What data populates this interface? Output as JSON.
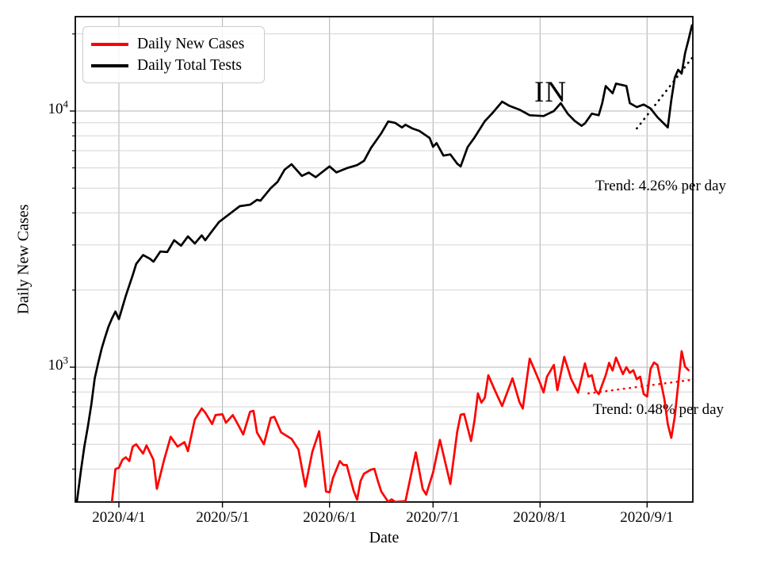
{
  "figure": {
    "annotations": {
      "region_label": "IN"
    }
  },
  "chart_data": {
    "type": "line",
    "title": "",
    "xlabel": "Date",
    "ylabel": "Daily New Cases",
    "y_scale": "log",
    "ylim": [
      298,
      23400
    ],
    "xlim": [
      "2020-03-19",
      "2020-09-14"
    ],
    "grid": true,
    "legend_position": "upper left",
    "x_ticks": [
      {
        "value": "2020-04-01",
        "label": "2020/4/1"
      },
      {
        "value": "2020-05-01",
        "label": "2020/5/1"
      },
      {
        "value": "2020-06-01",
        "label": "2020/6/1"
      },
      {
        "value": "2020-07-01",
        "label": "2020/7/1"
      },
      {
        "value": "2020-08-01",
        "label": "2020/8/1"
      },
      {
        "value": "2020-09-01",
        "label": "2020/9/1"
      }
    ],
    "y_major_ticks": [
      {
        "value": 1000,
        "base": "10",
        "exp": "3"
      },
      {
        "value": 10000,
        "base": "10",
        "exp": "4"
      }
    ],
    "y_minor_gridlines": [
      400,
      500,
      600,
      700,
      800,
      900,
      2000,
      3000,
      4000,
      5000,
      6000,
      7000,
      8000,
      9000,
      20000
    ],
    "series": [
      {
        "name": "Daily New Cases",
        "color": "#ff0000",
        "points": [
          [
            "2020-03-29",
            260
          ],
          [
            "2020-03-30",
            300
          ],
          [
            "2020-03-31",
            400
          ],
          [
            "2020-04-01",
            405
          ],
          [
            "2020-04-02",
            435
          ],
          [
            "2020-04-03",
            445
          ],
          [
            "2020-04-04",
            430
          ],
          [
            "2020-04-05",
            490
          ],
          [
            "2020-04-06",
            500
          ],
          [
            "2020-04-08",
            460
          ],
          [
            "2020-04-09",
            495
          ],
          [
            "2020-04-11",
            435
          ],
          [
            "2020-04-12",
            335
          ],
          [
            "2020-04-14",
            430
          ],
          [
            "2020-04-16",
            535
          ],
          [
            "2020-04-18",
            490
          ],
          [
            "2020-04-20",
            510
          ],
          [
            "2020-04-21",
            470
          ],
          [
            "2020-04-23",
            625
          ],
          [
            "2020-04-25",
            690
          ],
          [
            "2020-04-26",
            665
          ],
          [
            "2020-04-28",
            600
          ],
          [
            "2020-04-29",
            650
          ],
          [
            "2020-05-01",
            655
          ],
          [
            "2020-05-02",
            607
          ],
          [
            "2020-05-04",
            650
          ],
          [
            "2020-05-06",
            580
          ],
          [
            "2020-05-07",
            546
          ],
          [
            "2020-05-09",
            670
          ],
          [
            "2020-05-10",
            675
          ],
          [
            "2020-05-11",
            556
          ],
          [
            "2020-05-13",
            500
          ],
          [
            "2020-05-15",
            634
          ],
          [
            "2020-05-16",
            640
          ],
          [
            "2020-05-18",
            556
          ],
          [
            "2020-05-21",
            525
          ],
          [
            "2020-05-23",
            477
          ],
          [
            "2020-05-25",
            342
          ],
          [
            "2020-05-27",
            466
          ],
          [
            "2020-05-29",
            562
          ],
          [
            "2020-05-31",
            327
          ],
          [
            "2020-06-01",
            325
          ],
          [
            "2020-06-02",
            369
          ],
          [
            "2020-06-04",
            430
          ],
          [
            "2020-06-05",
            415
          ],
          [
            "2020-06-06",
            415
          ],
          [
            "2020-06-08",
            329
          ],
          [
            "2020-06-09",
            304
          ],
          [
            "2020-06-10",
            360
          ],
          [
            "2020-06-11",
            384
          ],
          [
            "2020-06-13",
            398
          ],
          [
            "2020-06-14",
            401
          ],
          [
            "2020-06-15",
            360
          ],
          [
            "2020-06-16",
            327
          ],
          [
            "2020-06-18",
            298
          ],
          [
            "2020-06-19",
            305
          ],
          [
            "2020-06-20",
            298
          ],
          [
            "2020-06-23",
            300
          ],
          [
            "2020-06-26",
            465
          ],
          [
            "2020-06-28",
            335
          ],
          [
            "2020-06-29",
            318
          ],
          [
            "2020-07-01",
            388
          ],
          [
            "2020-07-03",
            520
          ],
          [
            "2020-07-05",
            400
          ],
          [
            "2020-07-06",
            350
          ],
          [
            "2020-07-08",
            560
          ],
          [
            "2020-07-09",
            652
          ],
          [
            "2020-07-10",
            656
          ],
          [
            "2020-07-12",
            515
          ],
          [
            "2020-07-13",
            620
          ],
          [
            "2020-07-14",
            790
          ],
          [
            "2020-07-15",
            727
          ],
          [
            "2020-07-16",
            760
          ],
          [
            "2020-07-17",
            930
          ],
          [
            "2020-07-19",
            807
          ],
          [
            "2020-07-21",
            705
          ],
          [
            "2020-07-24",
            905
          ],
          [
            "2020-07-26",
            732
          ],
          [
            "2020-07-27",
            690
          ],
          [
            "2020-07-29",
            1080
          ],
          [
            "2020-08-01",
            867
          ],
          [
            "2020-08-02",
            797
          ],
          [
            "2020-08-03",
            918
          ],
          [
            "2020-08-05",
            1020
          ],
          [
            "2020-08-06",
            813
          ],
          [
            "2020-08-08",
            1097
          ],
          [
            "2020-08-10",
            900
          ],
          [
            "2020-08-12",
            795
          ],
          [
            "2020-08-14",
            1035
          ],
          [
            "2020-08-15",
            918
          ],
          [
            "2020-08-16",
            930
          ],
          [
            "2020-08-17",
            815
          ],
          [
            "2020-08-18",
            785
          ],
          [
            "2020-08-20",
            930
          ],
          [
            "2020-08-21",
            1040
          ],
          [
            "2020-08-22",
            970
          ],
          [
            "2020-08-23",
            1090
          ],
          [
            "2020-08-25",
            940
          ],
          [
            "2020-08-26",
            1000
          ],
          [
            "2020-08-27",
            950
          ],
          [
            "2020-08-28",
            973
          ],
          [
            "2020-08-29",
            897
          ],
          [
            "2020-08-30",
            918
          ],
          [
            "2020-08-31",
            786
          ],
          [
            "2020-09-01",
            768
          ],
          [
            "2020-09-02",
            985
          ],
          [
            "2020-09-03",
            1043
          ],
          [
            "2020-09-04",
            1020
          ],
          [
            "2020-09-06",
            750
          ],
          [
            "2020-09-07",
            600
          ],
          [
            "2020-09-08",
            530
          ],
          [
            "2020-09-09",
            640
          ],
          [
            "2020-09-10",
            855
          ],
          [
            "2020-09-11",
            1155
          ],
          [
            "2020-09-12",
            1005
          ],
          [
            "2020-09-13",
            973
          ]
        ]
      },
      {
        "name": "Daily Total Tests",
        "color": "#000000",
        "points": [
          [
            "2020-03-19",
            250
          ],
          [
            "2020-03-20",
            310
          ],
          [
            "2020-03-21",
            395
          ],
          [
            "2020-03-22",
            490
          ],
          [
            "2020-03-23",
            585
          ],
          [
            "2020-03-24",
            715
          ],
          [
            "2020-03-25",
            905
          ],
          [
            "2020-03-26",
            1040
          ],
          [
            "2020-03-27",
            1180
          ],
          [
            "2020-03-28",
            1310
          ],
          [
            "2020-03-29",
            1440
          ],
          [
            "2020-03-30",
            1550
          ],
          [
            "2020-03-31",
            1650
          ],
          [
            "2020-04-01",
            1540
          ],
          [
            "2020-04-03",
            1900
          ],
          [
            "2020-04-05",
            2285
          ],
          [
            "2020-04-06",
            2530
          ],
          [
            "2020-04-08",
            2740
          ],
          [
            "2020-04-10",
            2650
          ],
          [
            "2020-04-11",
            2580
          ],
          [
            "2020-04-13",
            2830
          ],
          [
            "2020-04-15",
            2815
          ],
          [
            "2020-04-17",
            3130
          ],
          [
            "2020-04-19",
            2980
          ],
          [
            "2020-04-21",
            3240
          ],
          [
            "2020-04-23",
            3040
          ],
          [
            "2020-04-25",
            3270
          ],
          [
            "2020-04-26",
            3130
          ],
          [
            "2020-04-28",
            3400
          ],
          [
            "2020-04-30",
            3690
          ],
          [
            "2020-05-03",
            3960
          ],
          [
            "2020-05-06",
            4250
          ],
          [
            "2020-05-09",
            4310
          ],
          [
            "2020-05-11",
            4500
          ],
          [
            "2020-05-12",
            4470
          ],
          [
            "2020-05-15",
            5000
          ],
          [
            "2020-05-17",
            5300
          ],
          [
            "2020-05-19",
            5900
          ],
          [
            "2020-05-21",
            6200
          ],
          [
            "2020-05-24",
            5580
          ],
          [
            "2020-05-26",
            5750
          ],
          [
            "2020-05-28",
            5520
          ],
          [
            "2020-06-01",
            6080
          ],
          [
            "2020-06-03",
            5760
          ],
          [
            "2020-06-06",
            5980
          ],
          [
            "2020-06-09",
            6150
          ],
          [
            "2020-06-11",
            6390
          ],
          [
            "2020-06-13",
            7170
          ],
          [
            "2020-06-16",
            8190
          ],
          [
            "2020-06-18",
            9100
          ],
          [
            "2020-06-20",
            8990
          ],
          [
            "2020-06-22",
            8630
          ],
          [
            "2020-06-23",
            8840
          ],
          [
            "2020-06-25",
            8550
          ],
          [
            "2020-06-27",
            8370
          ],
          [
            "2020-06-30",
            7850
          ],
          [
            "2020-07-01",
            7250
          ],
          [
            "2020-07-02",
            7500
          ],
          [
            "2020-07-04",
            6700
          ],
          [
            "2020-07-06",
            6770
          ],
          [
            "2020-07-08",
            6230
          ],
          [
            "2020-07-09",
            6080
          ],
          [
            "2020-07-11",
            7230
          ],
          [
            "2020-07-13",
            7880
          ],
          [
            "2020-07-16",
            9130
          ],
          [
            "2020-07-18",
            9750
          ],
          [
            "2020-07-21",
            10880
          ],
          [
            "2020-07-23",
            10500
          ],
          [
            "2020-07-26",
            10130
          ],
          [
            "2020-07-29",
            9630
          ],
          [
            "2020-08-02",
            9560
          ],
          [
            "2020-08-05",
            10000
          ],
          [
            "2020-08-07",
            10730
          ],
          [
            "2020-08-09",
            9760
          ],
          [
            "2020-08-11",
            9160
          ],
          [
            "2020-08-13",
            8760
          ],
          [
            "2020-08-14",
            8950
          ],
          [
            "2020-08-16",
            9770
          ],
          [
            "2020-08-18",
            9630
          ],
          [
            "2020-08-19",
            10730
          ],
          [
            "2020-08-20",
            12520
          ],
          [
            "2020-08-22",
            11730
          ],
          [
            "2020-08-23",
            12800
          ],
          [
            "2020-08-25",
            12620
          ],
          [
            "2020-08-26",
            12530
          ],
          [
            "2020-08-27",
            10730
          ],
          [
            "2020-08-29",
            10360
          ],
          [
            "2020-08-31",
            10600
          ],
          [
            "2020-09-02",
            10230
          ],
          [
            "2020-09-04",
            9460
          ],
          [
            "2020-09-07",
            8630
          ],
          [
            "2020-09-08",
            11000
          ],
          [
            "2020-09-09",
            13490
          ],
          [
            "2020-09-10",
            14490
          ],
          [
            "2020-09-11",
            14000
          ],
          [
            "2020-09-12",
            16820
          ],
          [
            "2020-09-13",
            19000
          ],
          [
            "2020-09-14",
            21600
          ]
        ]
      }
    ],
    "trend_lines": [
      {
        "name": "tests-trend",
        "color": "#000000",
        "style": "dotted",
        "x": [
          "2020-08-29",
          "2020-09-14"
        ],
        "y": [
          8550,
          16100
        ],
        "label": "Trend: 4.26% per day"
      },
      {
        "name": "cases-trend",
        "color": "#ff0000",
        "style": "dotted",
        "x": [
          "2020-08-15",
          "2020-09-14"
        ],
        "y": [
          790,
          893
        ],
        "label": "Trend: 0.48% per day"
      }
    ],
    "annotations": [
      {
        "text": "IN",
        "x": "2020-08-03",
        "y": 11000
      }
    ]
  }
}
